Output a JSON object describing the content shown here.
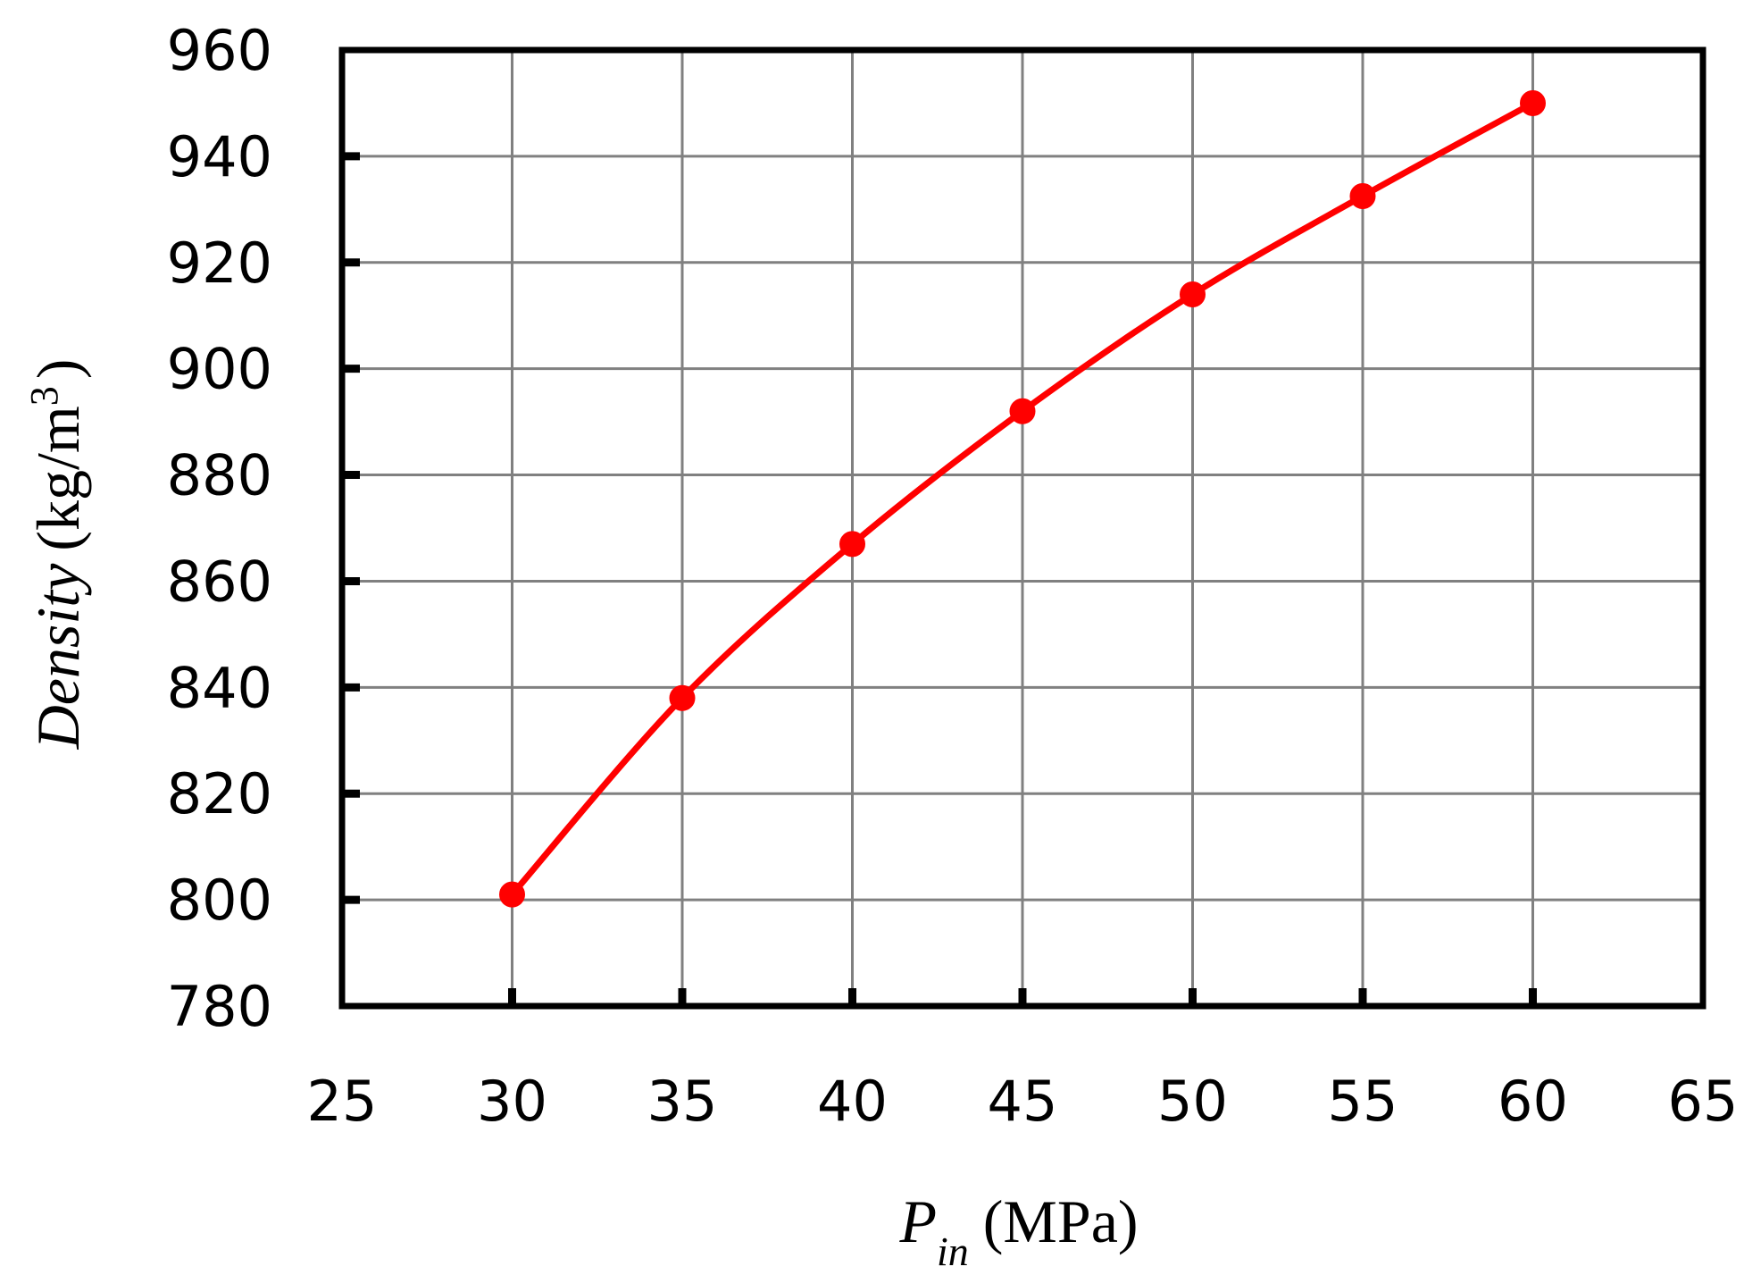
{
  "colors": {
    "series": "#ff0000",
    "grid": "#808080",
    "frame": "#000000",
    "background": "#ffffff"
  },
  "chart_data": {
    "type": "line",
    "title": "",
    "xlabel": {
      "symbol": "P",
      "subscript": "in",
      "unit": "(MPa)"
    },
    "ylabel": {
      "name": "Density",
      "unit_open": "(kg/m",
      "unit_sup": "3",
      "unit_close": ")"
    },
    "xlim": [
      25,
      65
    ],
    "ylim": [
      780,
      960
    ],
    "x_ticks": [
      "25",
      "30",
      "35",
      "40",
      "45",
      "50",
      "55",
      "60",
      "65"
    ],
    "y_ticks": [
      "780",
      "800",
      "820",
      "840",
      "860",
      "880",
      "900",
      "920",
      "940",
      "960"
    ],
    "grid": true,
    "legend": "none",
    "series": [
      {
        "x": [
          30,
          35,
          40,
          45,
          50,
          55,
          60
        ],
        "y": [
          801,
          838,
          867,
          892,
          914,
          932.5,
          950
        ]
      }
    ]
  }
}
